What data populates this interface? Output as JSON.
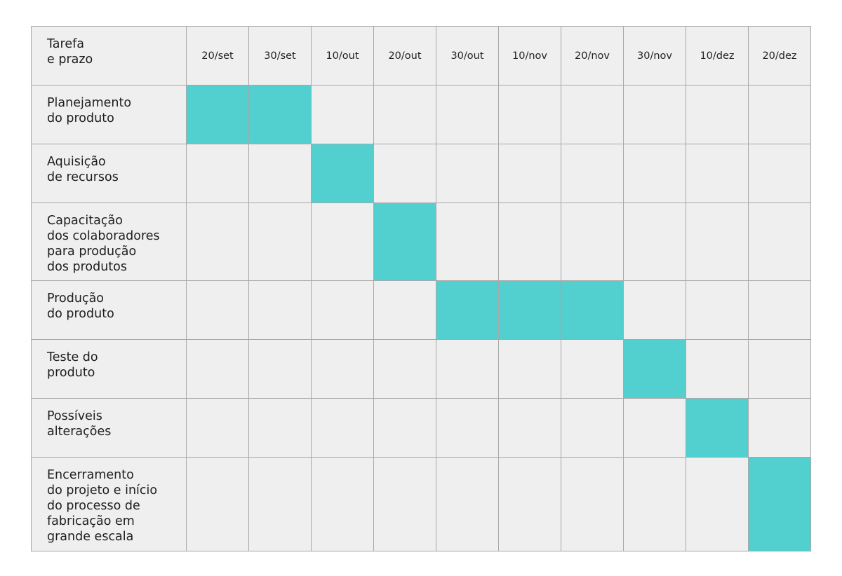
{
  "chart_data": {
    "type": "table",
    "header": {
      "task_label": "Tarefa\ne prazo"
    },
    "dates": [
      "20/set",
      "30/set",
      "10/out",
      "20/out",
      "30/out",
      "10/nov",
      "20/nov",
      "30/nov",
      "10/dez",
      "20/dez"
    ],
    "tasks": [
      {
        "label": "Planejamento\ndo produto",
        "active": [
          0,
          1
        ]
      },
      {
        "label": "Aquisição\nde recursos",
        "active": [
          2
        ]
      },
      {
        "label": "Capacitação\ndos colaboradores\npara produção\ndos produtos",
        "active": [
          3
        ]
      },
      {
        "label": "Produção\ndo produto",
        "active": [
          4,
          5,
          6
        ]
      },
      {
        "label": "Teste do\nproduto",
        "active": [
          7
        ]
      },
      {
        "label": "Possíveis\nalterações",
        "active": [
          8
        ]
      },
      {
        "label": "Encerramento\ndo projeto e início\ndo processo de\nfabricação em\ngrande escala",
        "active": [
          9
        ]
      }
    ],
    "colors": {
      "active": "#52cfcf",
      "background": "#efefef",
      "grid": "#a8a8a8"
    }
  }
}
